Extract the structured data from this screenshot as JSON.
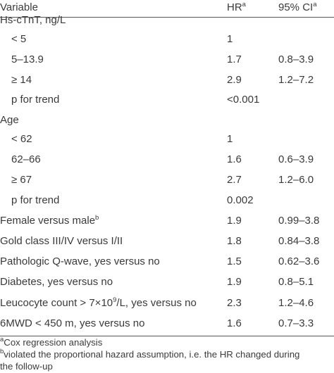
{
  "header": {
    "variable": "Variable",
    "hr": "HR",
    "hr_sup": "a",
    "ci": "95% CI",
    "ci_sup": "a"
  },
  "rows": [
    {
      "label": "Hs-cTnT, ng/L",
      "hr": "",
      "ci": ""
    },
    {
      "label": "< 5",
      "hr": "1",
      "ci": ""
    },
    {
      "label": "5–13.9",
      "hr": "1.7",
      "ci": "0.8–3.9"
    },
    {
      "label": "≥ 14",
      "hr": "2.9",
      "ci": "1.2–7.2"
    },
    {
      "label": "p for trend",
      "hr": "<0.001",
      "ci": ""
    },
    {
      "label": "Age",
      "hr": "",
      "ci": ""
    },
    {
      "label": "< 62",
      "hr": "1",
      "ci": ""
    },
    {
      "label": "62–66",
      "hr": "1.6",
      "ci": "0.6–3.9"
    },
    {
      "label": "≥ 67",
      "hr": "2.7",
      "ci": "1.2–6.0"
    },
    {
      "label": "p for trend",
      "hr": "0.002",
      "ci": ""
    },
    {
      "label": "Female versus male",
      "sup": "b",
      "hr": "1.9",
      "ci": "0.99–3.8"
    },
    {
      "label": "Gold class III/IV versus I/II",
      "hr": "1.8",
      "ci": "0.84–3.8"
    },
    {
      "label": "Pathologic Q-wave, yes versus no",
      "hr": "1.5",
      "ci": "0.62–3.6"
    },
    {
      "label": "Diabetes, yes versus no",
      "hr": "1.9",
      "ci": "0.8–5.1"
    },
    {
      "label": "Leucocyte count > 7×10",
      "sup_mid": "9",
      "label_tail": "/L, yes versus no",
      "hr": "2.3",
      "ci": "1.2–4.6"
    },
    {
      "label": "6MWD < 450 m, yes versus no",
      "hr": "1.6",
      "ci": "0.7–3.3"
    }
  ],
  "footnotes": [
    {
      "mark": "a",
      "text": "Cox regression analysis"
    },
    {
      "mark": "b",
      "text": "violated the proportional hazard assumption, i.e. the HR changed during"
    },
    {
      "mark": "",
      "text": "the follow-up"
    }
  ]
}
